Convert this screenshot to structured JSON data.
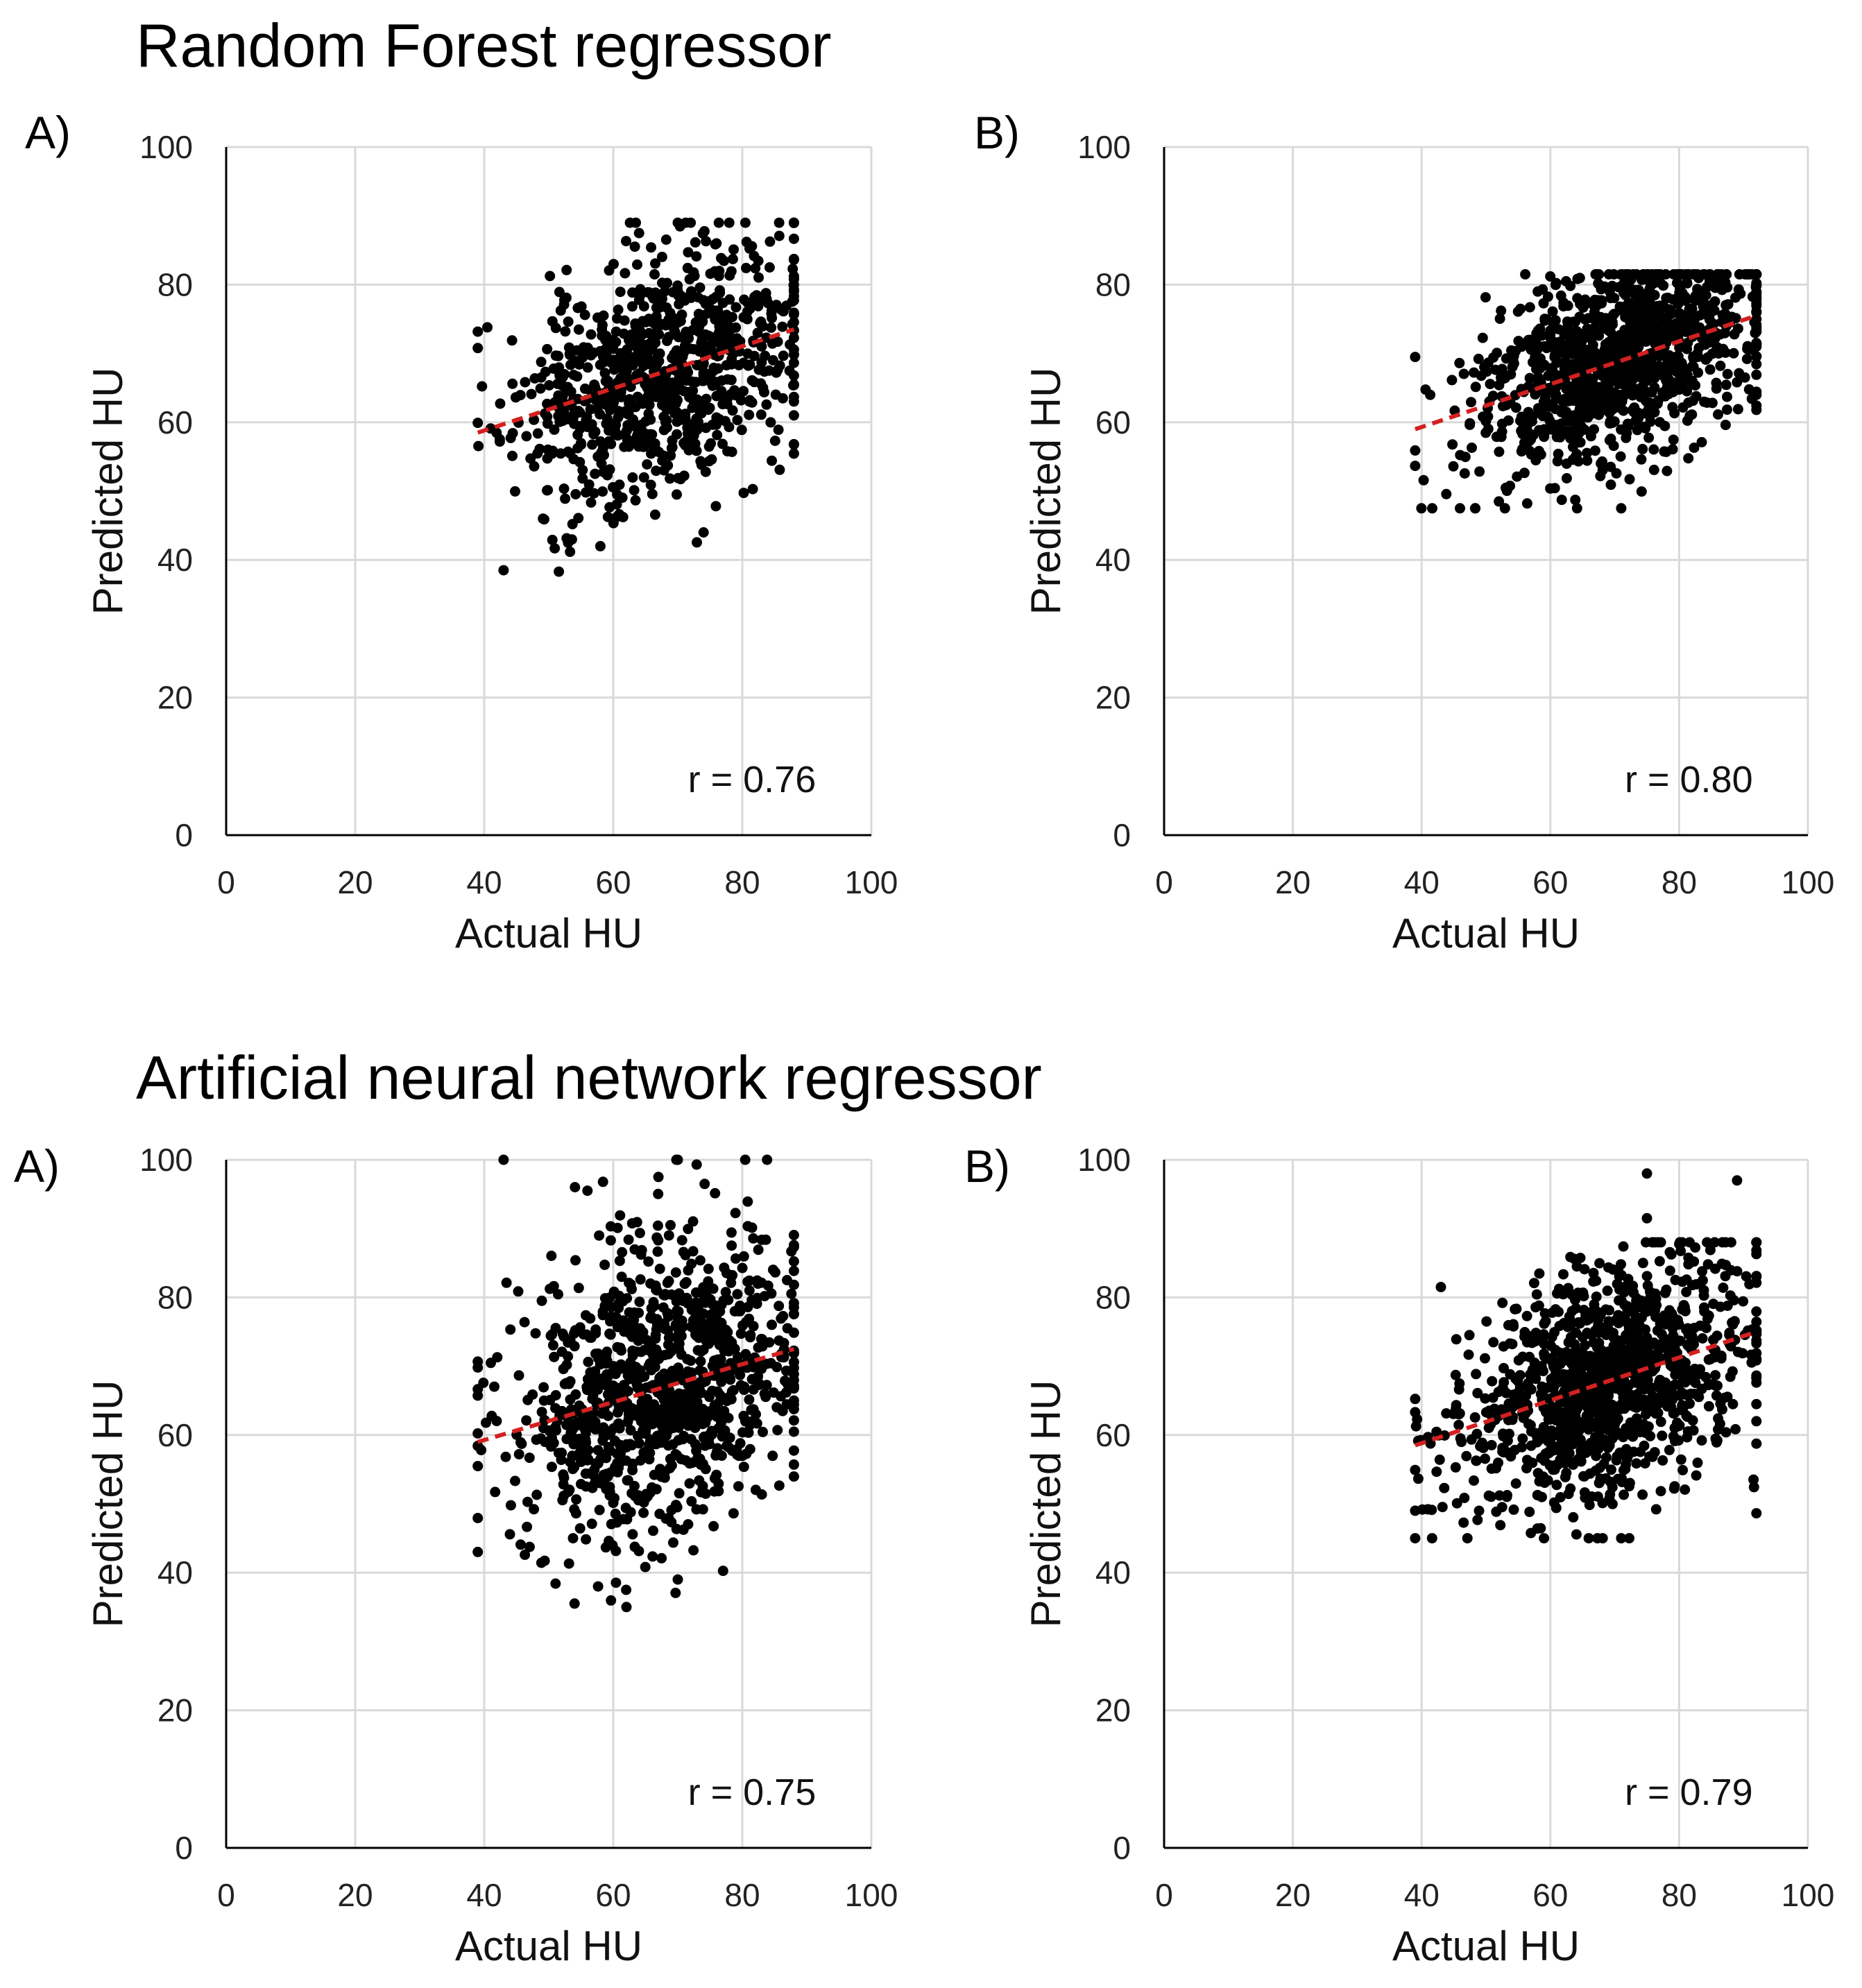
{
  "sections": [
    {
      "title": "Random Forest regressor"
    },
    {
      "title": "Artificial neural network regressor"
    }
  ],
  "colors": {
    "points": "#000000",
    "trend": "#d42020",
    "grid": "#d9d9d9",
    "axis": "#000000"
  },
  "chart_data": [
    {
      "type": "scatter",
      "section": "Random Forest regressor",
      "panel": "A)",
      "title": "",
      "xlabel": "Actual HU",
      "ylabel": "Predicted HU",
      "xlim": [
        0,
        100
      ],
      "ylim": [
        0,
        100
      ],
      "xticks": [
        "0",
        "20",
        "40",
        "60",
        "80",
        "100"
      ],
      "yticks": [
        "0",
        "20",
        "40",
        "60",
        "80",
        "100"
      ],
      "grid": true,
      "annotation": "r = 0.76",
      "trendline": {
        "x": [
          39,
          88
        ],
        "y": [
          58.5,
          73.5
        ]
      },
      "point_cloud": {
        "count": 900,
        "seed": 11,
        "x_range": [
          39,
          88
        ],
        "x_mean": 67,
        "x_sd": 11,
        "intercept": 46.5,
        "slope": 0.31,
        "y_sd": 8.5,
        "y_range": [
          38,
          89
        ]
      },
      "outliers": [
        [
          43,
          38.5
        ],
        [
          53,
          42.5
        ],
        [
          58,
          42
        ],
        [
          74,
          44
        ],
        [
          70,
          89
        ],
        [
          72,
          89
        ],
        [
          64,
          87.5
        ],
        [
          76,
          86
        ]
      ]
    },
    {
      "type": "scatter",
      "section": "Random Forest regressor",
      "panel": "B)",
      "title": "",
      "xlabel": "Actual HU",
      "ylabel": "Predicted HU",
      "xlim": [
        0,
        100
      ],
      "ylim": [
        0,
        100
      ],
      "xticks": [
        "0",
        "20",
        "40",
        "60",
        "80",
        "100"
      ],
      "yticks": [
        "0",
        "20",
        "40",
        "60",
        "80",
        "100"
      ],
      "grid": true,
      "annotation": "r = 0.80",
      "trendline": {
        "x": [
          39,
          92
        ],
        "y": [
          59,
          75.5
        ]
      },
      "point_cloud": {
        "count": 1100,
        "seed": 23,
        "x_range": [
          39,
          92
        ],
        "x_mean": 70,
        "x_sd": 11,
        "intercept": 46.8,
        "slope": 0.31,
        "y_sd": 7,
        "y_range": [
          47.5,
          81.5
        ]
      },
      "outliers": [
        [
          39,
          69.5
        ],
        [
          71,
          47.5
        ],
        [
          52,
          48.5
        ],
        [
          92,
          75
        ]
      ]
    },
    {
      "type": "scatter",
      "section": "Artificial neural network regressor",
      "panel": "A)",
      "title": "",
      "xlabel": "Actual HU",
      "ylabel": "Predicted HU",
      "xlim": [
        0,
        100
      ],
      "ylim": [
        0,
        100
      ],
      "xticks": [
        "0",
        "20",
        "40",
        "60",
        "80",
        "100"
      ],
      "yticks": [
        "0",
        "20",
        "40",
        "60",
        "80",
        "100"
      ],
      "grid": true,
      "annotation": "r = 0.75",
      "trendline": {
        "x": [
          39,
          88
        ],
        "y": [
          59,
          72.5
        ]
      },
      "point_cloud": {
        "count": 1050,
        "seed": 37,
        "x_range": [
          39,
          88
        ],
        "x_mean": 67,
        "x_sd": 11,
        "intercept": 48.3,
        "slope": 0.28,
        "y_sd": 10.5,
        "y_range": [
          35,
          100
        ]
      },
      "outliers": [
        [
          43,
          100
        ],
        [
          70,
          100
        ],
        [
          67,
          97.5
        ],
        [
          56,
          95.5
        ],
        [
          54,
          35.5
        ],
        [
          62,
          37.5
        ],
        [
          70,
          39
        ],
        [
          39,
          43
        ],
        [
          88,
          72
        ]
      ]
    },
    {
      "type": "scatter",
      "section": "Artificial neural network regressor",
      "panel": "B)",
      "title": "",
      "xlabel": "Actual HU",
      "ylabel": "Predicted HU",
      "xlim": [
        0,
        100
      ],
      "ylim": [
        0,
        100
      ],
      "xticks": [
        "0",
        "20",
        "40",
        "60",
        "80",
        "100"
      ],
      "yticks": [
        "0",
        "20",
        "40",
        "60",
        "80",
        "100"
      ],
      "grid": true,
      "annotation": "r = 0.79",
      "trendline": {
        "x": [
          39,
          92
        ],
        "y": [
          58.5,
          75
        ]
      },
      "point_cloud": {
        "count": 1150,
        "seed": 53,
        "x_range": [
          39,
          92
        ],
        "x_mean": 69,
        "x_sd": 11,
        "intercept": 46.4,
        "slope": 0.31,
        "y_sd": 8.5,
        "y_range": [
          45,
          88
        ]
      },
      "outliers": [
        [
          75,
          98
        ],
        [
          89,
          97
        ],
        [
          75,
          91.5
        ],
        [
          43,
          81.5
        ],
        [
          39,
          49
        ],
        [
          92,
          64.5
        ],
        [
          92,
          83
        ],
        [
          71,
          45
        ]
      ]
    }
  ]
}
